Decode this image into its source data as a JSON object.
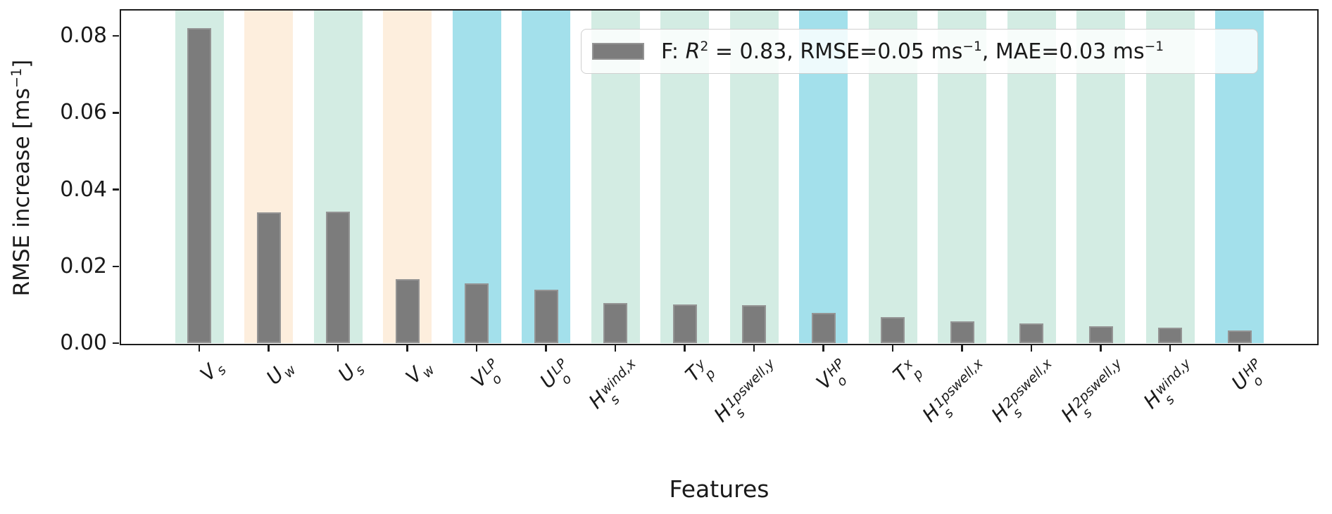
{
  "chart_data": {
    "type": "bar",
    "title": "",
    "xlabel": "Features",
    "ylabel": "RMSE increase [ms−1]",
    "ylabel_parts": [
      {
        "t": "RMSE increase [ms",
        "style": "normal"
      },
      {
        "t": "−1",
        "style": "sup"
      },
      {
        "t": "]",
        "style": "normal"
      }
    ],
    "ylim": [
      0,
      0.0866
    ],
    "grid": false,
    "legend_position": "upper right",
    "yticks": {
      "values": [
        0.0,
        0.02,
        0.04,
        0.06,
        0.08
      ],
      "labels": [
        "0.00",
        "0.02",
        "0.04",
        "0.06",
        "0.08"
      ]
    },
    "categories": [
      "V_s",
      "U_w",
      "U_s",
      "V_w",
      "V_o^LP",
      "U_o^LP",
      "H_s^wind,x",
      "T_p^y",
      "H_s^1pswell,y",
      "V_o^HP",
      "T_p^x",
      "H_s^1pswell,x",
      "H_s^2pswell,x",
      "H_s^2pswell,y",
      "H_s^wind,y",
      "U_o^HP"
    ],
    "values": [
      0.082,
      0.0341,
      0.0343,
      0.0167,
      0.0156,
      0.0139,
      0.0104,
      0.0101,
      0.0099,
      0.0079,
      0.0068,
      0.0057,
      0.0051,
      0.0044,
      0.0041,
      0.0033
    ],
    "features": [
      {
        "main": "V",
        "sub": "s",
        "sup": "",
        "group": "teal",
        "value": 0.082
      },
      {
        "main": "U",
        "sub": "w",
        "sup": "",
        "group": "peach",
        "value": 0.0341
      },
      {
        "main": "U",
        "sub": "s",
        "sup": "",
        "group": "teal",
        "value": 0.0343
      },
      {
        "main": "V",
        "sub": "w",
        "sup": "",
        "group": "peach",
        "value": 0.0167
      },
      {
        "main": "V",
        "sub": "o",
        "sup": "LP",
        "group": "cyan",
        "value": 0.0156
      },
      {
        "main": "U",
        "sub": "o",
        "sup": "LP",
        "group": "cyan",
        "value": 0.0139
      },
      {
        "main": "H",
        "sub": "s",
        "sup": "wind,x",
        "group": "teal",
        "value": 0.0104
      },
      {
        "main": "T",
        "sub": "p",
        "sup": "y",
        "group": "teal",
        "value": 0.0101
      },
      {
        "main": "H",
        "sub": "s",
        "sup": "1pswell,y",
        "group": "teal",
        "value": 0.0099
      },
      {
        "main": "V",
        "sub": "o",
        "sup": "HP",
        "group": "cyan",
        "value": 0.0079
      },
      {
        "main": "T",
        "sub": "p",
        "sup": "x",
        "group": "teal",
        "value": 0.0068
      },
      {
        "main": "H",
        "sub": "s",
        "sup": "1pswell,x",
        "group": "teal",
        "value": 0.0057
      },
      {
        "main": "H",
        "sub": "s",
        "sup": "2pswell,x",
        "group": "teal",
        "value": 0.0051
      },
      {
        "main": "H",
        "sub": "s",
        "sup": "2pswell,y",
        "group": "teal",
        "value": 0.0044
      },
      {
        "main": "H",
        "sub": "s",
        "sup": "wind,y",
        "group": "teal",
        "value": 0.0041
      },
      {
        "main": "U",
        "sub": "o",
        "sup": "HP",
        "group": "cyan",
        "value": 0.0033
      }
    ],
    "colors": {
      "bar_fill": "#7c7c7c",
      "bar_edge": "#949494",
      "axis": "#1c1c1c",
      "bands": {
        "teal": "#d3ece3",
        "peach": "#fdeedd",
        "cyan": "#a3e0eb"
      }
    },
    "legend": {
      "label_plain": "F: R2 = 0.83, RMSE=0.05 ms−1, MAE=0.03 ms−1",
      "swatch_color": "#7c7c7c",
      "parts": [
        {
          "t": "F: ",
          "style": "normal"
        },
        {
          "t": "R",
          "style": "italic"
        },
        {
          "t": "2",
          "style": "sup"
        },
        {
          "t": " = 0.83, RMSE=0.05 ms",
          "style": "normal"
        },
        {
          "t": "−1",
          "style": "sup"
        },
        {
          "t": ", MAE=0.03 ms",
          "style": "normal"
        },
        {
          "t": "−1",
          "style": "sup"
        }
      ]
    }
  }
}
